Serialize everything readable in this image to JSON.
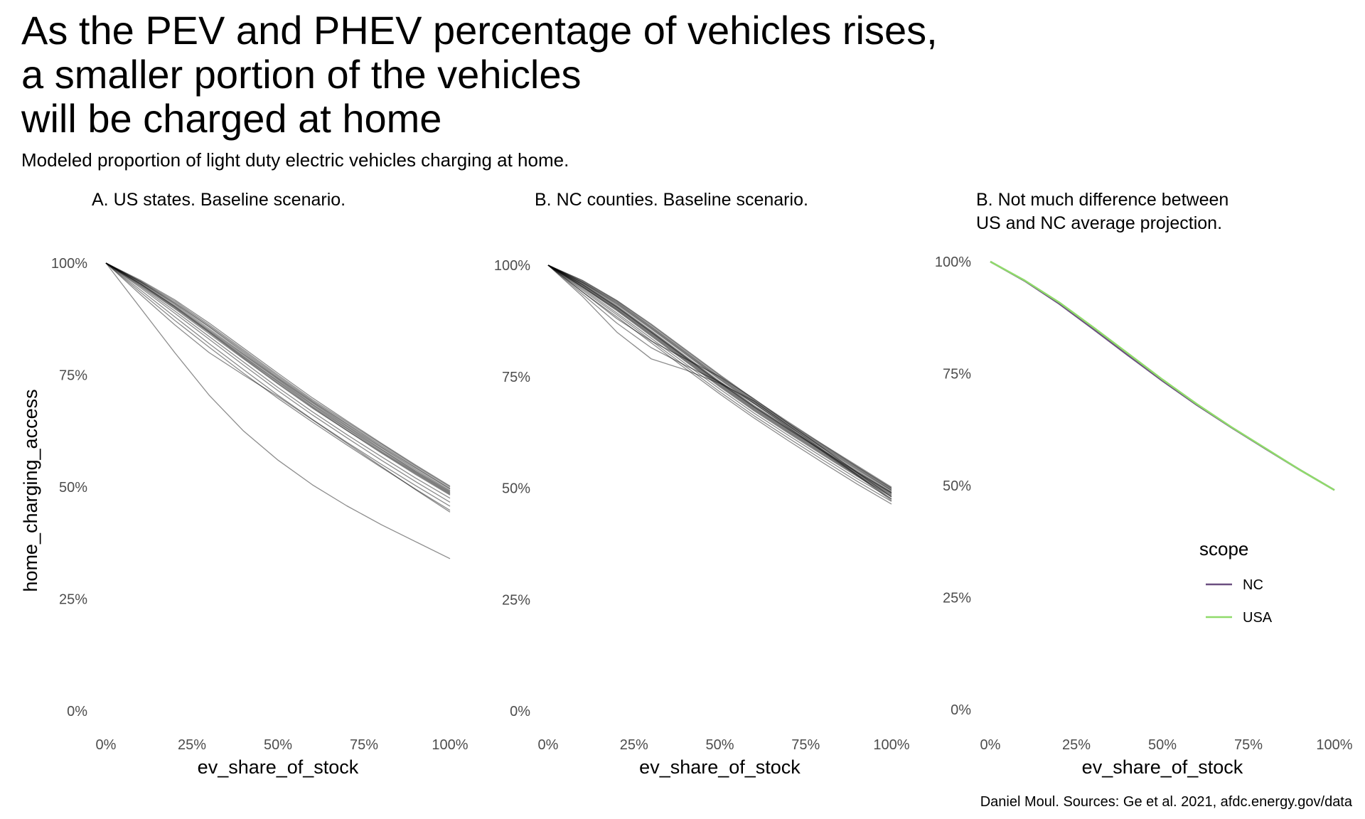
{
  "title_lines": [
    "As the PEV and PHEV percentage of vehicles rises,",
    "a smaller portion of the vehicles",
    "will be charged at home"
  ],
  "subtitle": "Modeled proportion of light duty electric vehicles charging at home.",
  "caption": "Daniel Moul. Sources: Ge et al. 2021, afdc.energy.gov/data",
  "chart_data": [
    {
      "type": "line",
      "title": "A. US states. Baseline scenario.",
      "xlabel": "ev_share_of_stock",
      "ylabel": "home_charging_access",
      "xlim": [
        0,
        1
      ],
      "ylim": [
        0,
        1
      ],
      "xticks": [
        "0%",
        "25%",
        "50%",
        "75%",
        "100%"
      ],
      "yticks": [
        "0%",
        "25%",
        "50%",
        "75%",
        "100%"
      ],
      "grid": false,
      "line_color": "#000000",
      "x": [
        0,
        0.1,
        0.2,
        0.3,
        0.4,
        0.5,
        0.6,
        0.7,
        0.8,
        0.9,
        1.0
      ],
      "series": [
        {
          "values": [
            1,
            0.96,
            0.915,
            0.862,
            0.806,
            0.75,
            0.695,
            0.645,
            0.596,
            0.547,
            0.5
          ]
        },
        {
          "values": [
            1,
            0.958,
            0.91,
            0.857,
            0.8,
            0.744,
            0.69,
            0.64,
            0.59,
            0.542,
            0.495
          ]
        },
        {
          "values": [
            1,
            0.955,
            0.905,
            0.85,
            0.795,
            0.74,
            0.685,
            0.635,
            0.585,
            0.536,
            0.49
          ]
        },
        {
          "values": [
            1,
            0.953,
            0.902,
            0.846,
            0.79,
            0.735,
            0.68,
            0.63,
            0.58,
            0.532,
            0.486
          ]
        },
        {
          "values": [
            1,
            0.95,
            0.898,
            0.842,
            0.786,
            0.73,
            0.676,
            0.626,
            0.576,
            0.528,
            0.482
          ]
        },
        {
          "values": [
            1,
            0.957,
            0.908,
            0.853,
            0.797,
            0.742,
            0.688,
            0.637,
            0.588,
            0.539,
            0.492
          ]
        },
        {
          "values": [
            1,
            0.952,
            0.9,
            0.845,
            0.788,
            0.732,
            0.678,
            0.627,
            0.578,
            0.53,
            0.484
          ]
        },
        {
          "values": [
            1,
            0.948,
            0.893,
            0.836,
            0.779,
            0.722,
            0.668,
            0.617,
            0.568,
            0.52,
            0.475
          ]
        },
        {
          "values": [
            1,
            0.945,
            0.888,
            0.83,
            0.772,
            0.715,
            0.661,
            0.61,
            0.56,
            0.512,
            0.466
          ]
        },
        {
          "values": [
            1,
            0.94,
            0.88,
            0.82,
            0.762,
            0.705,
            0.651,
            0.6,
            0.551,
            0.503,
            0.457
          ]
        },
        {
          "values": [
            1,
            0.935,
            0.872,
            0.812,
            0.754,
            0.698,
            0.645,
            0.594,
            0.544,
            0.495,
            0.448
          ]
        },
        {
          "values": [
            1,
            0.93,
            0.862,
            0.8,
            0.75,
            0.702,
            0.65,
            0.598,
            0.546,
            0.494,
            0.444
          ]
        },
        {
          "values": [
            1,
            0.9,
            0.8,
            0.705,
            0.625,
            0.56,
            0.505,
            0.458,
            0.416,
            0.378,
            0.34
          ]
        },
        {
          "values": [
            1,
            0.962,
            0.918,
            0.866,
            0.81,
            0.754,
            0.699,
            0.648,
            0.598,
            0.549,
            0.502
          ]
        },
        {
          "values": [
            1,
            0.959,
            0.912,
            0.859,
            0.803,
            0.747,
            0.692,
            0.642,
            0.593,
            0.544,
            0.497
          ]
        },
        {
          "values": [
            1,
            0.954,
            0.903,
            0.848,
            0.792,
            0.737,
            0.683,
            0.632,
            0.583,
            0.534,
            0.488
          ]
        }
      ]
    },
    {
      "type": "line",
      "title": "B. NC counties. Baseline scenario.",
      "xlabel": "ev_share_of_stock",
      "xlim": [
        0,
        1
      ],
      "ylim": [
        0,
        1
      ],
      "xticks": [
        "0%",
        "25%",
        "50%",
        "75%",
        "100%"
      ],
      "yticks": [
        "0%",
        "25%",
        "50%",
        "75%",
        "100%"
      ],
      "grid": false,
      "line_color": "#000000",
      "x": [
        0,
        0.1,
        0.2,
        0.3,
        0.4,
        0.5,
        0.6,
        0.7,
        0.8,
        0.9,
        1.0
      ],
      "series": [
        {
          "values": [
            1,
            0.965,
            0.92,
            0.866,
            0.809,
            0.752,
            0.697,
            0.646,
            0.597,
            0.548,
            0.5
          ]
        },
        {
          "values": [
            1,
            0.962,
            0.916,
            0.861,
            0.804,
            0.747,
            0.693,
            0.642,
            0.593,
            0.545,
            0.497
          ]
        },
        {
          "values": [
            1,
            0.96,
            0.912,
            0.857,
            0.8,
            0.743,
            0.689,
            0.638,
            0.589,
            0.541,
            0.494
          ]
        },
        {
          "values": [
            1,
            0.958,
            0.909,
            0.853,
            0.796,
            0.739,
            0.685,
            0.635,
            0.586,
            0.538,
            0.491
          ]
        },
        {
          "values": [
            1,
            0.955,
            0.905,
            0.849,
            0.792,
            0.735,
            0.681,
            0.631,
            0.582,
            0.534,
            0.488
          ]
        },
        {
          "values": [
            1,
            0.952,
            0.901,
            0.845,
            0.788,
            0.731,
            0.677,
            0.627,
            0.578,
            0.53,
            0.484
          ]
        },
        {
          "values": [
            1,
            0.95,
            0.898,
            0.841,
            0.784,
            0.727,
            0.673,
            0.623,
            0.574,
            0.526,
            0.48
          ]
        },
        {
          "values": [
            1,
            0.963,
            0.918,
            0.863,
            0.806,
            0.749,
            0.695,
            0.644,
            0.595,
            0.547,
            0.499
          ]
        },
        {
          "values": [
            1,
            0.957,
            0.907,
            0.851,
            0.794,
            0.737,
            0.683,
            0.633,
            0.584,
            0.536,
            0.49
          ]
        },
        {
          "values": [
            1,
            0.953,
            0.903,
            0.847,
            0.79,
            0.733,
            0.679,
            0.629,
            0.58,
            0.532,
            0.486
          ]
        },
        {
          "values": [
            1,
            0.947,
            0.893,
            0.836,
            0.779,
            0.722,
            0.668,
            0.618,
            0.569,
            0.521,
            0.476
          ]
        },
        {
          "values": [
            1,
            0.944,
            0.889,
            0.831,
            0.773,
            0.716,
            0.662,
            0.612,
            0.563,
            0.515,
            0.47
          ]
        },
        {
          "values": [
            1,
            0.94,
            0.884,
            0.826,
            0.768,
            0.711,
            0.657,
            0.606,
            0.557,
            0.509,
            0.464
          ]
        },
        {
          "values": [
            1,
            0.966,
            0.921,
            0.868,
            0.811,
            0.754,
            0.699,
            0.648,
            0.598,
            0.55,
            0.502
          ]
        },
        {
          "values": [
            1,
            0.961,
            0.914,
            0.859,
            0.802,
            0.745,
            0.691,
            0.64,
            0.591,
            0.543,
            0.495
          ]
        },
        {
          "values": [
            1,
            0.956,
            0.906,
            0.85,
            0.793,
            0.736,
            0.682,
            0.632,
            0.583,
            0.535,
            0.489
          ]
        },
        {
          "values": [
            1,
            0.951,
            0.9,
            0.843,
            0.786,
            0.729,
            0.675,
            0.625,
            0.576,
            0.528,
            0.482
          ]
        },
        {
          "values": [
            1,
            0.93,
            0.85,
            0.79,
            0.765,
            0.735,
            0.695,
            0.64,
            0.585,
            0.53,
            0.475
          ]
        },
        {
          "values": [
            1,
            0.94,
            0.88,
            0.83,
            0.79,
            0.75,
            0.7,
            0.645,
            0.59,
            0.535,
            0.48
          ]
        },
        {
          "values": [
            1,
            0.935,
            0.87,
            0.815,
            0.775,
            0.738,
            0.69,
            0.636,
            0.582,
            0.528,
            0.472
          ]
        }
      ]
    },
    {
      "type": "line",
      "title": "B. Not much difference between\nUS and NC average projection.",
      "title_lines": [
        "B. Not much difference between",
        "US and NC average projection."
      ],
      "xlabel": "ev_share_of_stock",
      "xlim": [
        0,
        1
      ],
      "ylim": [
        0,
        1
      ],
      "xticks": [
        "0%",
        "25%",
        "50%",
        "75%",
        "100%"
      ],
      "yticks": [
        "0%",
        "25%",
        "50%",
        "75%",
        "100%"
      ],
      "grid": false,
      "legend": {
        "title": "scope",
        "position": "right-bottom"
      },
      "x": [
        0,
        0.1,
        0.2,
        0.3,
        0.4,
        0.5,
        0.6,
        0.7,
        0.8,
        0.9,
        1.0
      ],
      "series": [
        {
          "name": "NC",
          "color": "#6b4f80",
          "values": [
            1,
            0.957,
            0.906,
            0.849,
            0.791,
            0.734,
            0.68,
            0.63,
            0.582,
            0.535,
            0.49
          ]
        },
        {
          "name": "USA",
          "color": "#8fdb6a",
          "values": [
            1,
            0.958,
            0.909,
            0.853,
            0.795,
            0.737,
            0.682,
            0.631,
            0.583,
            0.535,
            0.49
          ]
        }
      ]
    }
  ]
}
